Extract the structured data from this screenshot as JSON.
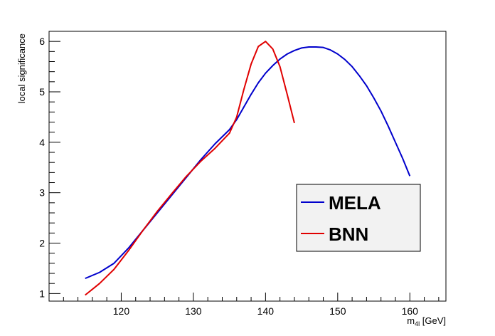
{
  "chart_data": {
    "type": "line",
    "xlabel": "m",
    "xlabel_sub": "4l",
    "xlabel_unit": " [GeV]",
    "ylabel": "local significance",
    "xlim": [
      110,
      165
    ],
    "ylim": [
      0.85,
      6.2
    ],
    "xticks": [
      120,
      130,
      140,
      150,
      160
    ],
    "yticks": [
      1,
      2,
      3,
      4,
      5,
      6
    ],
    "grid": false,
    "legend_position": "lower-right",
    "series": [
      {
        "name": "MELA",
        "color": "#0000cc",
        "x": [
          115,
          117,
          119,
          121,
          123,
          125,
          127,
          129,
          131,
          133,
          135,
          136,
          137,
          138,
          139,
          140,
          141,
          142,
          143,
          144,
          145,
          146,
          147,
          148,
          149,
          150,
          151,
          152,
          153,
          154,
          155,
          156,
          157,
          158,
          159,
          160
        ],
        "y": [
          1.3,
          1.42,
          1.6,
          1.9,
          2.25,
          2.6,
          2.95,
          3.3,
          3.65,
          3.97,
          4.25,
          4.45,
          4.7,
          4.95,
          5.18,
          5.37,
          5.52,
          5.65,
          5.75,
          5.82,
          5.87,
          5.89,
          5.89,
          5.88,
          5.83,
          5.75,
          5.64,
          5.5,
          5.32,
          5.12,
          4.88,
          4.62,
          4.32,
          4.0,
          3.68,
          3.33
        ]
      },
      {
        "name": "BNN",
        "color": "#e00000",
        "x": [
          115,
          117,
          119,
          121,
          123,
          125,
          127,
          129,
          131,
          133,
          135,
          136,
          137,
          138,
          139,
          140,
          141,
          142,
          143,
          144
        ],
        "y": [
          0.97,
          1.2,
          1.48,
          1.85,
          2.25,
          2.63,
          2.98,
          3.32,
          3.62,
          3.88,
          4.18,
          4.5,
          5.05,
          5.55,
          5.9,
          6.0,
          5.85,
          5.5,
          4.95,
          4.38
        ]
      }
    ]
  }
}
